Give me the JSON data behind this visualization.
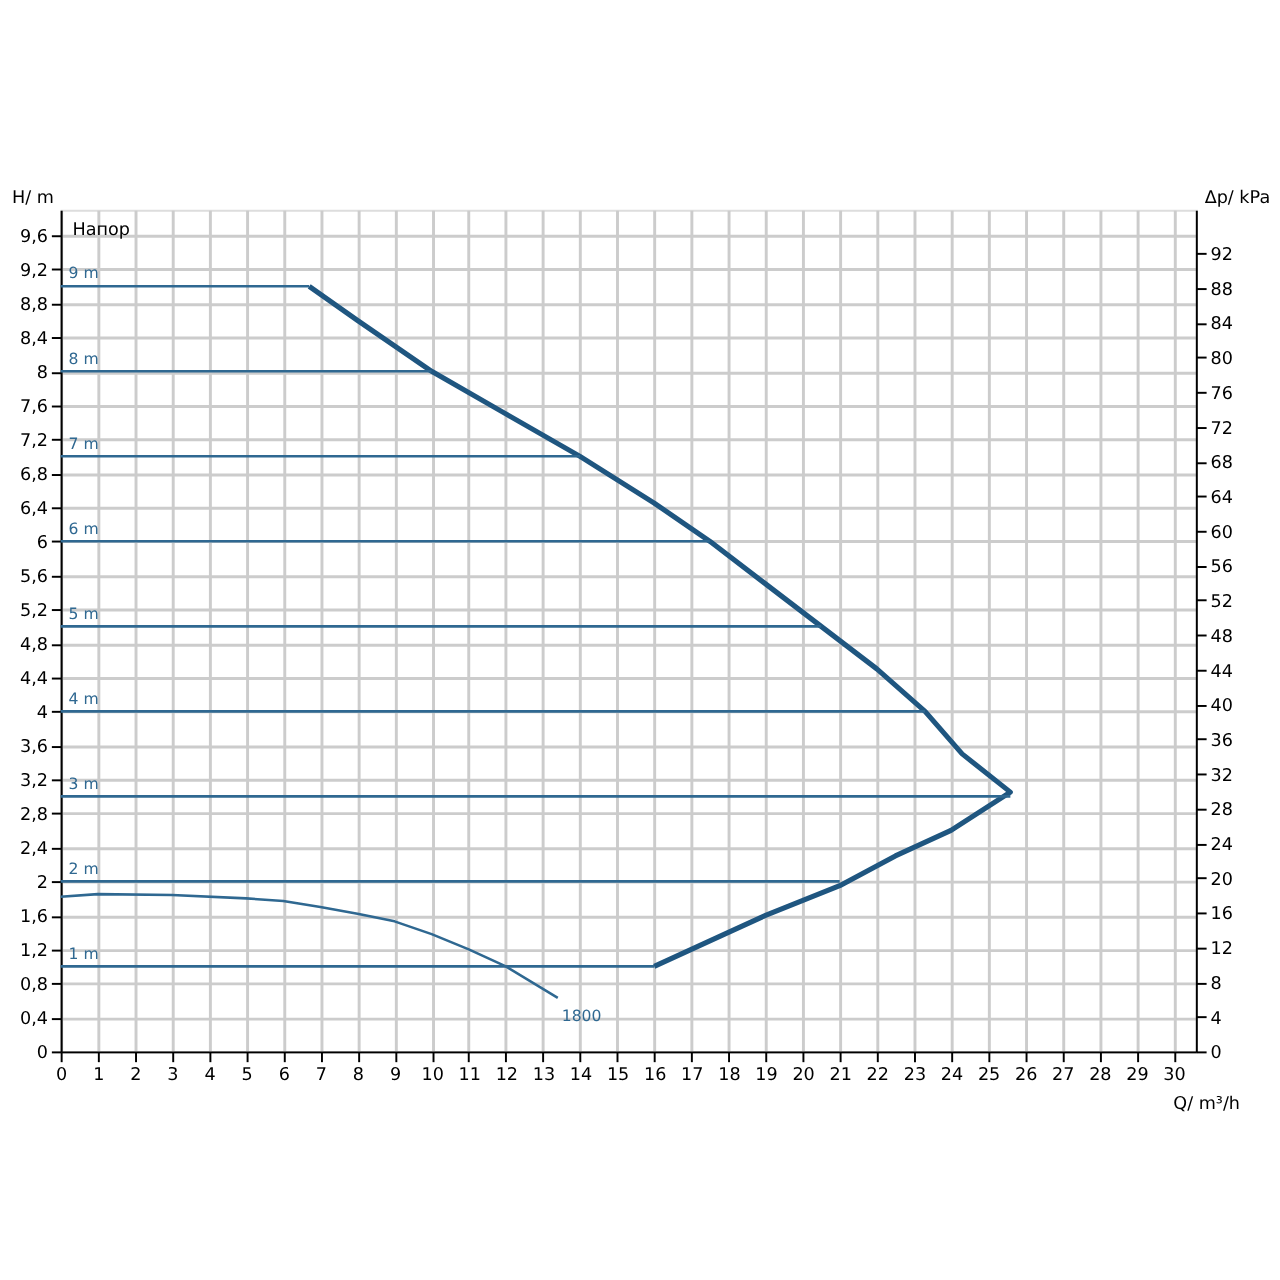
{
  "chart_data": {
    "type": "line",
    "xlabel": "Q/ m³/h",
    "ylabel": "H/ m",
    "y2label": "Δp/ kPa",
    "annotations": [
      "Напор"
    ],
    "xlim": [
      0,
      30.6
    ],
    "xticks": [
      0,
      1,
      2,
      3,
      4,
      5,
      6,
      7,
      8,
      9,
      10,
      11,
      12,
      13,
      14,
      15,
      16,
      17,
      18,
      19,
      20,
      21,
      22,
      23,
      24,
      25,
      26,
      27,
      28,
      29,
      30
    ],
    "ylim": [
      0,
      9.9
    ],
    "yticks": [
      0,
      {
        "value": 0.4,
        "label": "0,4"
      },
      {
        "value": 0.8,
        "label": "0,8"
      },
      {
        "value": 1.2,
        "label": "1,2"
      },
      {
        "value": 1.6,
        "label": "1,6"
      },
      2,
      {
        "value": 2.4,
        "label": "2,4"
      },
      {
        "value": 2.8,
        "label": "2,8"
      },
      {
        "value": 3.2,
        "label": "3,2"
      },
      {
        "value": 3.6,
        "label": "3,6"
      },
      4,
      {
        "value": 4.4,
        "label": "4,4"
      },
      {
        "value": 4.8,
        "label": "4,8"
      },
      {
        "value": 5.2,
        "label": "5,2"
      },
      {
        "value": 5.6,
        "label": "5,6"
      },
      6,
      {
        "value": 6.4,
        "label": "6,4"
      },
      {
        "value": 6.8,
        "label": "6,8"
      },
      {
        "value": 7.2,
        "label": "7,2"
      },
      {
        "value": 7.6,
        "label": "7,6"
      },
      8,
      {
        "value": 8.4,
        "label": "8,4"
      },
      {
        "value": 8.8,
        "label": "8,8"
      },
      {
        "value": 9.2,
        "label": "9,2"
      },
      {
        "value": 9.6,
        "label": "9,6"
      }
    ],
    "y2lim": [
      0,
      97
    ],
    "y2ticks": [
      0,
      4,
      8,
      12,
      16,
      20,
      24,
      28,
      32,
      36,
      40,
      44,
      48,
      52,
      56,
      60,
      64,
      68,
      72,
      76,
      80,
      84,
      88,
      92
    ],
    "grid": true,
    "legend": false,
    "marker": "none",
    "line_style": "solid",
    "series": [
      {
        "color": "#1f5680",
        "x": [
          6.7,
          8,
          10,
          12,
          14,
          16,
          17.5,
          19,
          20.5,
          22,
          23.3,
          24.3,
          25.6,
          24,
          22.5,
          21,
          19,
          18,
          17,
          16
        ],
        "values": [
          9,
          8.6,
          8.0,
          7.5,
          7.0,
          6.45,
          6.0,
          5.5,
          5.0,
          4.5,
          4.0,
          3.5,
          3.05,
          2.6,
          2.3,
          1.95,
          1.6,
          1.4,
          1.2,
          1.0
        ]
      },
      {
        "name": "9 m",
        "color": "#2f6891",
        "x": [
          0,
          6.7
        ],
        "values": [
          9,
          9
        ]
      },
      {
        "name": "8 m",
        "color": "#2f6891",
        "x": [
          0,
          10
        ],
        "values": [
          8,
          8
        ]
      },
      {
        "name": "7 m",
        "color": "#2f6891",
        "x": [
          0,
          14
        ],
        "values": [
          7,
          7
        ]
      },
      {
        "name": "6 m",
        "color": "#2f6891",
        "x": [
          0,
          17.5
        ],
        "values": [
          6,
          6
        ]
      },
      {
        "name": "5 m",
        "color": "#2f6891",
        "x": [
          0,
          20.5
        ],
        "values": [
          5,
          5
        ]
      },
      {
        "name": "4 m",
        "color": "#2f6891",
        "x": [
          0,
          23.3
        ],
        "values": [
          4,
          4
        ]
      },
      {
        "name": "3 m",
        "color": "#2f6891",
        "x": [
          0,
          25.6
        ],
        "values": [
          3,
          3
        ]
      },
      {
        "name": "2 m",
        "color": "#2f6891",
        "x": [
          0,
          21
        ],
        "values": [
          2,
          2
        ]
      },
      {
        "name": "1 m",
        "color": "#2f6891",
        "x": [
          0,
          16
        ],
        "values": [
          1,
          1
        ]
      },
      {
        "name": "1800",
        "color": "#2f6891",
        "x": [
          0,
          1,
          3,
          5,
          6,
          7,
          8,
          9,
          10,
          11,
          12,
          13.4
        ],
        "values": [
          1.82,
          1.85,
          1.84,
          1.8,
          1.77,
          1.7,
          1.62,
          1.53,
          1.38,
          1.2,
          1.0,
          0.63
        ]
      }
    ]
  }
}
